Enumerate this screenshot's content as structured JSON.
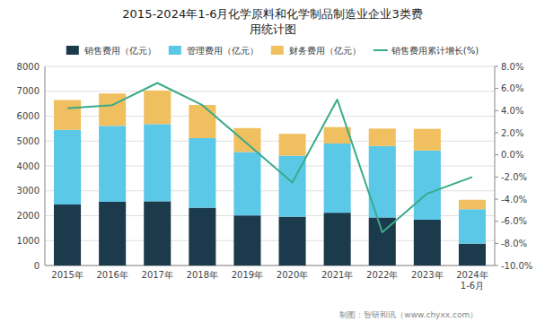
{
  "chart_data": {
    "type": "bar",
    "title": "2015-2024年1-6月化学原料和化学制品制造业企业3类费\n用统计图",
    "footer": "制图：智研和讯（www.chyxx.com）",
    "categories": [
      "2015年",
      "2016年",
      "2017年",
      "2018年",
      "2019年",
      "2020年",
      "2021年",
      "2022年",
      "2023年",
      "2024年\n1-6月"
    ],
    "stacked": true,
    "grid": true,
    "legend": "top",
    "series": [
      {
        "name": "销售费用（亿元）",
        "type": "bar",
        "color": "#1b3a4b",
        "values": [
          2450,
          2560,
          2580,
          2320,
          2010,
          1960,
          2120,
          1930,
          1840,
          880
        ]
      },
      {
        "name": "管理费用（亿元）",
        "type": "bar",
        "color": "#5bc8e8",
        "values": [
          3000,
          3050,
          3100,
          2800,
          2550,
          2450,
          2780,
          2870,
          2780,
          1380
        ]
      },
      {
        "name": "财务费用（亿元）",
        "type": "bar",
        "color": "#f0c060",
        "values": [
          1200,
          1300,
          1350,
          1330,
          960,
          880,
          660,
          700,
          870,
          380
        ]
      },
      {
        "name": "销售费用累计增长(%)",
        "type": "line",
        "axis": "y2",
        "color": "#3aaa8a",
        "values": [
          4.2,
          4.5,
          6.5,
          4.5,
          1.0,
          -2.5,
          5.0,
          -7.0,
          -3.5,
          -2.0
        ]
      }
    ],
    "ylim": [
      0,
      8000
    ],
    "yticks": [
      0,
      1000,
      2000,
      3000,
      4000,
      5000,
      6000,
      7000,
      8000
    ],
    "y2lim": [
      -10.0,
      8.0
    ],
    "y2ticks": [
      {
        "value": -10.0,
        "label": "-10.0%"
      },
      {
        "value": -8.0,
        "label": "-8.0%"
      },
      {
        "value": -6.0,
        "label": "-6.0%"
      },
      {
        "value": -4.0,
        "label": "-4.0%"
      },
      {
        "value": -2.0,
        "label": "-2.0%"
      },
      {
        "value": 0.0,
        "label": "0.0%"
      },
      {
        "value": 2.0,
        "label": "2.0%"
      },
      {
        "value": 4.0,
        "label": "4.0%"
      },
      {
        "value": 6.0,
        "label": "6.0%"
      },
      {
        "value": 8.0,
        "label": "8.0%"
      }
    ]
  }
}
